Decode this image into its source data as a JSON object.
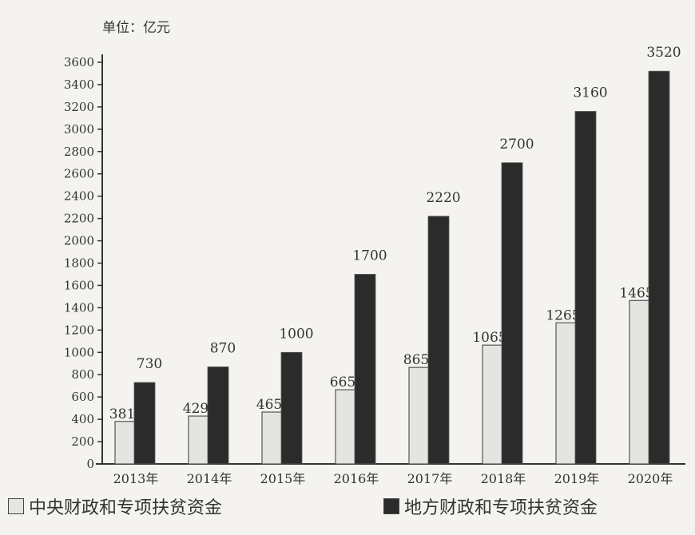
{
  "chart_data": {
    "type": "bar",
    "unit_label": "单位：亿元",
    "categories": [
      "2013年",
      "2014年",
      "2015年",
      "2016年",
      "2017年",
      "2018年",
      "2019年",
      "2020年"
    ],
    "series": [
      {
        "name": "中央财政和专项扶贫资金",
        "color": "#e4e4e0",
        "values": [
          381,
          429,
          465,
          665,
          865,
          1065,
          1265,
          1465
        ]
      },
      {
        "name": "地方财政和专项扶贫资金",
        "color": "#2b2b2b",
        "values": [
          730,
          870,
          1000,
          1700,
          2220,
          2700,
          3160,
          3520
        ]
      }
    ],
    "value_labels": [
      [
        "381",
        "429",
        "465",
        "665",
        "865",
        "1065",
        "1265",
        "1465"
      ],
      [
        "730",
        "870",
        "1000",
        "1700",
        "2220",
        "2700",
        "3160",
        "3520"
      ]
    ],
    "yticks": [
      "0",
      "200",
      "400",
      "600",
      "800",
      "1000",
      "1200",
      "1400",
      "1600",
      "1800",
      "2000",
      "2200",
      "2400",
      "2600",
      "2800",
      "3000",
      "3200",
      "3400",
      "3600"
    ],
    "ylim": [
      0,
      3600
    ],
    "legend_position": "bottom"
  }
}
